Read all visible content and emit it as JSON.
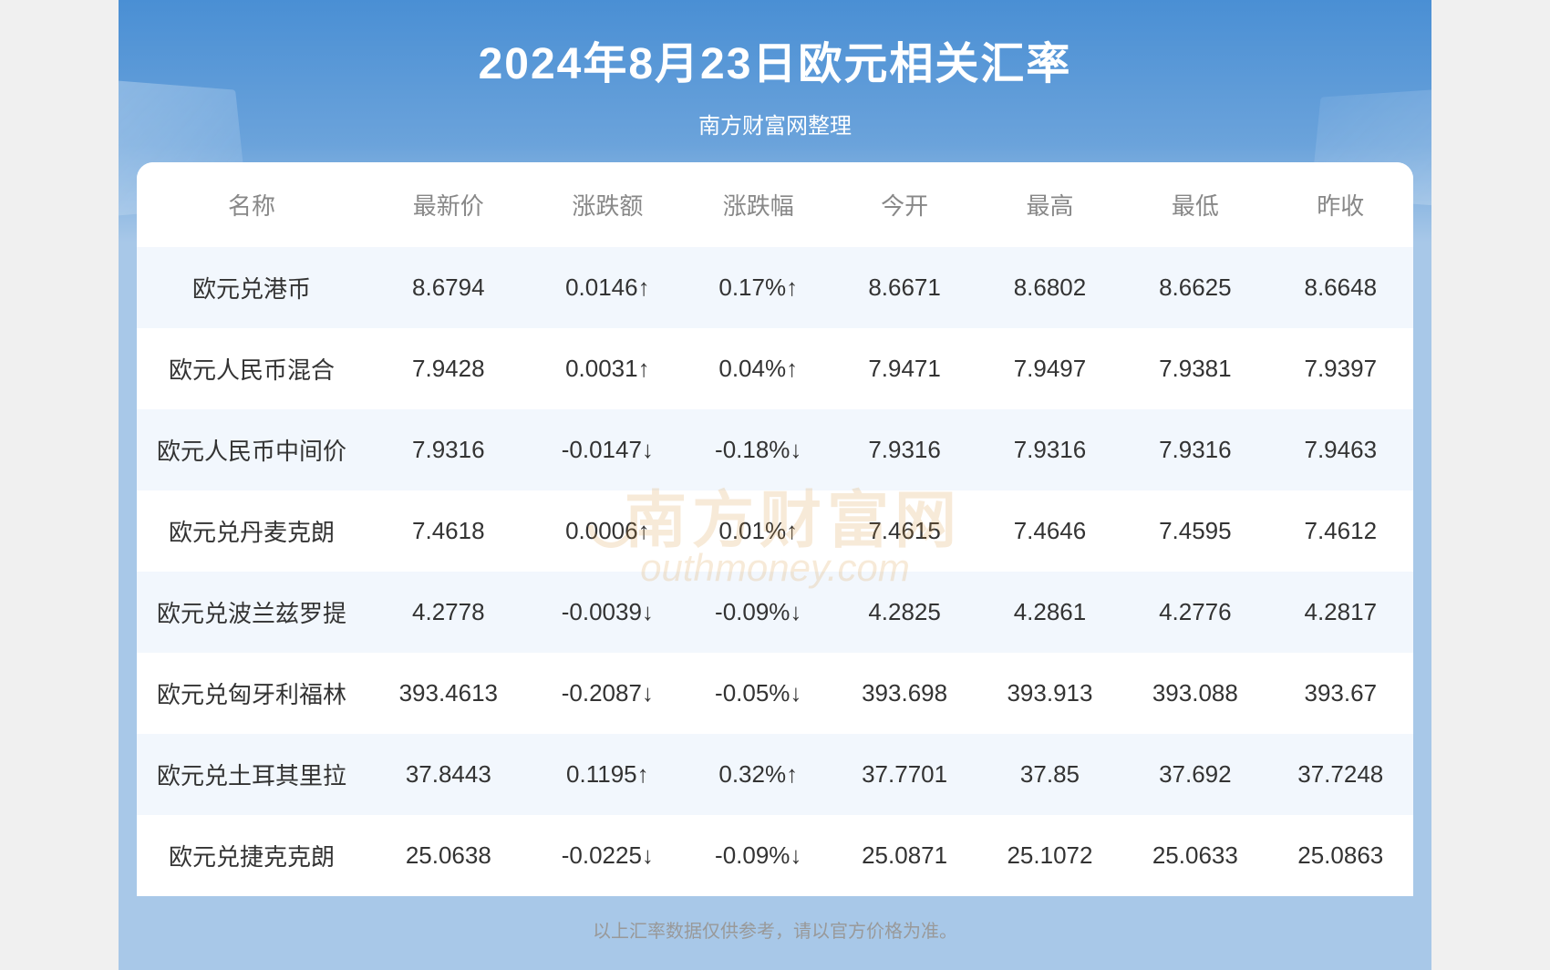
{
  "header": {
    "title": "2024年8月23日欧元相关汇率",
    "subtitle": "南方财富网整理"
  },
  "table": {
    "columns": [
      "名称",
      "最新价",
      "涨跌额",
      "涨跌幅",
      "今开",
      "最高",
      "最低",
      "昨收"
    ],
    "rows": [
      {
        "name": "欧元兑港币",
        "latest": "8.6794",
        "change": "0.0146↑",
        "pct": "0.17%↑",
        "open": "8.6671",
        "high": "8.6802",
        "low": "8.6625",
        "prev": "8.6648",
        "dir": "up"
      },
      {
        "name": "欧元人民币混合",
        "latest": "7.9428",
        "change": "0.0031↑",
        "pct": "0.04%↑",
        "open": "7.9471",
        "high": "7.9497",
        "low": "7.9381",
        "prev": "7.9397",
        "dir": "up"
      },
      {
        "name": "欧元人民币中间价",
        "latest": "7.9316",
        "change": "-0.0147↓",
        "pct": "-0.18%↓",
        "open": "7.9316",
        "high": "7.9316",
        "low": "7.9316",
        "prev": "7.9463",
        "dir": "down"
      },
      {
        "name": "欧元兑丹麦克朗",
        "latest": "7.4618",
        "change": "0.0006↑",
        "pct": "0.01%↑",
        "open": "7.4615",
        "high": "7.4646",
        "low": "7.4595",
        "prev": "7.4612",
        "dir": "up"
      },
      {
        "name": "欧元兑波兰兹罗提",
        "latest": "4.2778",
        "change": "-0.0039↓",
        "pct": "-0.09%↓",
        "open": "4.2825",
        "high": "4.2861",
        "low": "4.2776",
        "prev": "4.2817",
        "dir": "down"
      },
      {
        "name": "欧元兑匈牙利福林",
        "latest": "393.4613",
        "change": "-0.2087↓",
        "pct": "-0.05%↓",
        "open": "393.698",
        "high": "393.913",
        "low": "393.088",
        "prev": "393.67",
        "dir": "down"
      },
      {
        "name": "欧元兑土耳其里拉",
        "latest": "37.8443",
        "change": "0.1195↑",
        "pct": "0.32%↑",
        "open": "37.7701",
        "high": "37.85",
        "low": "37.692",
        "prev": "37.7248",
        "dir": "up"
      },
      {
        "name": "欧元兑捷克克朗",
        "latest": "25.0638",
        "change": "-0.0225↓",
        "pct": "-0.09%↓",
        "open": "25.0871",
        "high": "25.1072",
        "low": "25.0633",
        "prev": "25.0863",
        "dir": "down"
      }
    ]
  },
  "footer": {
    "disclaimer": "以上汇率数据仅供参考，请以官方价格为准。"
  },
  "watermark": {
    "cn": "南方财富网",
    "en": "outhmoney.com"
  },
  "colors": {
    "header_gradient_top": "#4a8fd4",
    "header_gradient_bottom": "#a8c8e8",
    "title_color": "#ffffff",
    "row_odd_bg": "#f2f7fd",
    "row_even_bg": "#ffffff",
    "header_text": "#888888",
    "cell_text": "#333333",
    "up_color": "#e74c3c",
    "down_color": "#1fa755",
    "footer_text": "#999999",
    "watermark_color": "#d89030"
  },
  "typography": {
    "title_fontsize": 48,
    "subtitle_fontsize": 24,
    "header_fontsize": 26,
    "cell_fontsize": 26,
    "footer_fontsize": 20
  }
}
